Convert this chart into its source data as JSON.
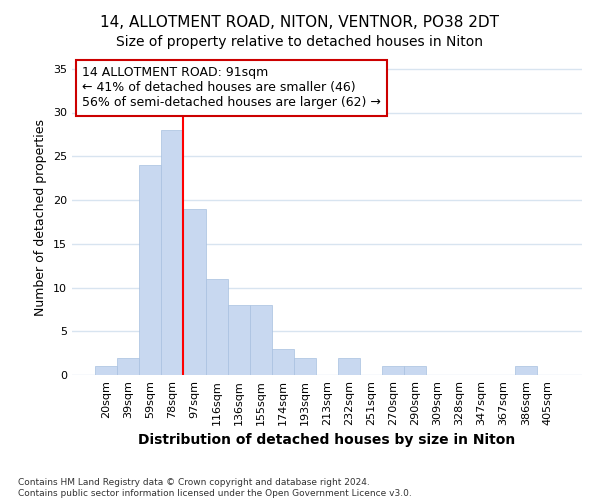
{
  "title1": "14, ALLOTMENT ROAD, NITON, VENTNOR, PO38 2DT",
  "title2": "Size of property relative to detached houses in Niton",
  "xlabel": "Distribution of detached houses by size in Niton",
  "ylabel": "Number of detached properties",
  "categories": [
    "20sqm",
    "39sqm",
    "59sqm",
    "78sqm",
    "97sqm",
    "116sqm",
    "136sqm",
    "155sqm",
    "174sqm",
    "193sqm",
    "213sqm",
    "232sqm",
    "251sqm",
    "270sqm",
    "290sqm",
    "309sqm",
    "328sqm",
    "347sqm",
    "367sqm",
    "386sqm",
    "405sqm"
  ],
  "values": [
    1,
    2,
    24,
    28,
    19,
    11,
    8,
    8,
    3,
    2,
    0,
    2,
    0,
    1,
    1,
    0,
    0,
    0,
    0,
    1,
    0
  ],
  "bar_color": "#c8d8f0",
  "bar_edge_color": "#a8c0e0",
  "bar_width": 1.0,
  "ylim": [
    0,
    36
  ],
  "yticks": [
    0,
    5,
    10,
    15,
    20,
    25,
    30,
    35
  ],
  "red_line_x": 3.5,
  "annotation_title": "14 ALLOTMENT ROAD: 91sqm",
  "annotation_line1": "← 41% of detached houses are smaller (46)",
  "annotation_line2": "56% of semi-detached houses are larger (62) →",
  "annotation_box_color": "#cc0000",
  "footer1": "Contains HM Land Registry data © Crown copyright and database right 2024.",
  "footer2": "Contains public sector information licensed under the Open Government Licence v3.0.",
  "bg_color": "#ffffff",
  "grid_color": "#d8e4f0",
  "title1_fontsize": 11,
  "title2_fontsize": 10,
  "xlabel_fontsize": 10,
  "ylabel_fontsize": 9,
  "tick_fontsize": 8,
  "ann_fontsize": 9
}
